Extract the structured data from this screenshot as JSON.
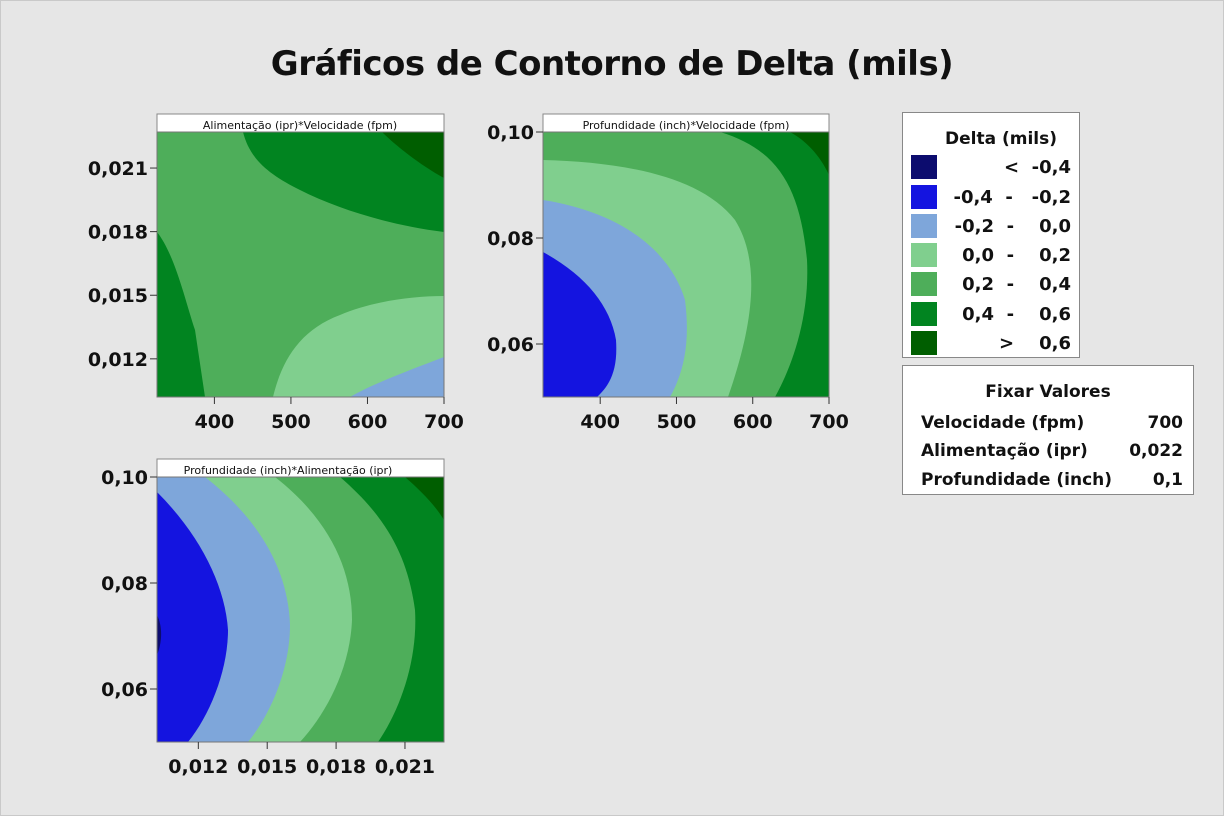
{
  "title": "Gráficos de Contorno de Delta (mils)",
  "legend": {
    "title": "Delta (mils)",
    "items": [
      {
        "range": "<  -0,4",
        "color": "#0c0c6e"
      },
      {
        "range": "-0,4  -   -0,2",
        "color": "#1414e0"
      },
      {
        "range": "-0,2  -    0,0",
        "color": "#7ea6da"
      },
      {
        "range": "0,0  -    0,2",
        "color": "#80cf8e"
      },
      {
        "range": "0,2  -    0,4",
        "color": "#4eae5a"
      },
      {
        "range": "0,4  -    0,6",
        "color": "#018420"
      },
      {
        "range": ">    0,6",
        "color": "#005e00"
      }
    ]
  },
  "hold_values": {
    "title": "Fixar Valores",
    "rows": [
      {
        "name": "Velocidade (fpm)",
        "value": "700"
      },
      {
        "name": "Alimentação (ipr)",
        "value": "0,022"
      },
      {
        "name": "Profundidade (inch)",
        "value": "0,1"
      }
    ]
  },
  "chart_data": [
    {
      "type": "heatmap",
      "panel_title": "Alimentação (ipr)*Velocidade (fpm)",
      "xlim": [
        325,
        700
      ],
      "ylim": [
        0.0102,
        0.0227
      ],
      "x_ticks": [
        400,
        500,
        600,
        700
      ],
      "x_tick_labels": [
        "400",
        "500",
        "600",
        "700"
      ],
      "y_ticks": [
        0.012,
        0.015,
        0.018,
        0.021
      ],
      "y_tick_labels": [
        "0,012",
        "0,015",
        "0,018",
        "0,021"
      ]
    },
    {
      "type": "heatmap",
      "panel_title": "Profundidade (inch)*Velocidade (fpm)",
      "xlim": [
        325,
        700
      ],
      "ylim": [
        0.05,
        0.1
      ],
      "x_ticks": [
        400,
        500,
        600,
        700
      ],
      "x_tick_labels": [
        "400",
        "500",
        "600",
        "700"
      ],
      "y_ticks": [
        0.06,
        0.08,
        0.1
      ],
      "y_tick_labels": [
        "0,06",
        "0,08",
        "0,10"
      ]
    },
    {
      "type": "heatmap",
      "panel_title": "Profundidade (inch)*Alimentação (ipr)",
      "xlim": [
        0.0102,
        0.0227
      ],
      "ylim": [
        0.05,
        0.1
      ],
      "x_ticks": [
        0.012,
        0.015,
        0.018,
        0.021
      ],
      "x_tick_labels": [
        "0,012",
        "0,015",
        "0,018",
        "0,021"
      ],
      "y_ticks": [
        0.06,
        0.08,
        0.1
      ],
      "y_tick_labels": [
        "0,06",
        "0,08",
        "0,10"
      ]
    }
  ]
}
